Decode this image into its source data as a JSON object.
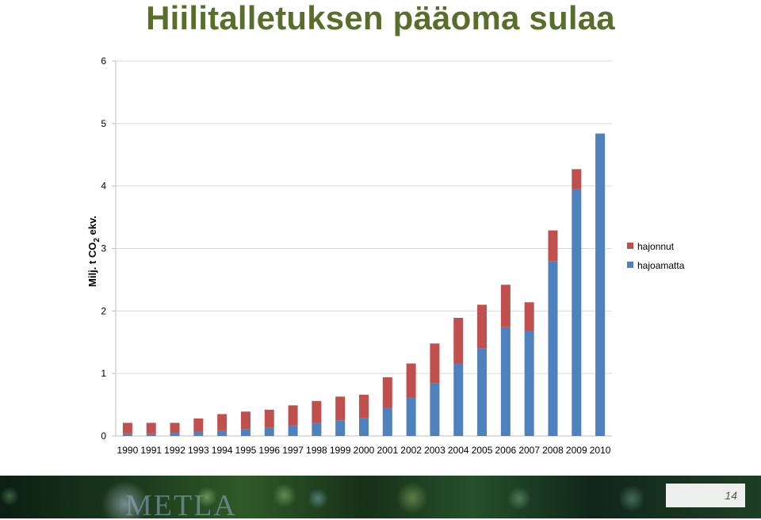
{
  "slide": {
    "title": "Hiilitalletuksen pääoma sulaa",
    "logo": "METLA",
    "page_number": "14"
  },
  "colors": {
    "title": "#5a6e2c",
    "hajonnut": "#c0504d",
    "hajoamatta": "#4f81bd",
    "gridline": "#d9d9d9"
  },
  "chart_data": {
    "type": "bar",
    "stacked": true,
    "title": "",
    "ylabel_main": "Milj. t CO",
    "ylabel_sub": "2",
    "ylabel_tail": " ekv.",
    "xlabel": "",
    "ylim": [
      0,
      6
    ],
    "yticks": [
      "0",
      "1",
      "2",
      "3",
      "4",
      "5",
      "6"
    ],
    "grid": true,
    "legend_position": "right",
    "categories": [
      "1990",
      "1991",
      "1992",
      "1993",
      "1994",
      "1995",
      "1996",
      "1997",
      "1998",
      "1999",
      "2000",
      "2001",
      "2002",
      "2003",
      "2004",
      "2005",
      "2006",
      "2007",
      "2008",
      "2009",
      "2010"
    ],
    "series": [
      {
        "name": "hajoamatta",
        "color": "#4f81bd",
        "values": [
          0.04,
          0.04,
          0.05,
          0.07,
          0.09,
          0.11,
          0.13,
          0.17,
          0.21,
          0.25,
          0.29,
          0.45,
          0.61,
          0.84,
          1.16,
          1.4,
          1.74,
          1.68,
          2.8,
          3.95,
          4.84
        ]
      },
      {
        "name": "hajonnut",
        "color": "#c0504d",
        "values": [
          0.17,
          0.17,
          0.16,
          0.21,
          0.26,
          0.28,
          0.29,
          0.32,
          0.35,
          0.38,
          0.37,
          0.49,
          0.55,
          0.64,
          0.73,
          0.7,
          0.68,
          0.46,
          0.49,
          0.32,
          0.0
        ]
      }
    ],
    "legend": [
      "hajonnut",
      "hajoamatta"
    ]
  }
}
